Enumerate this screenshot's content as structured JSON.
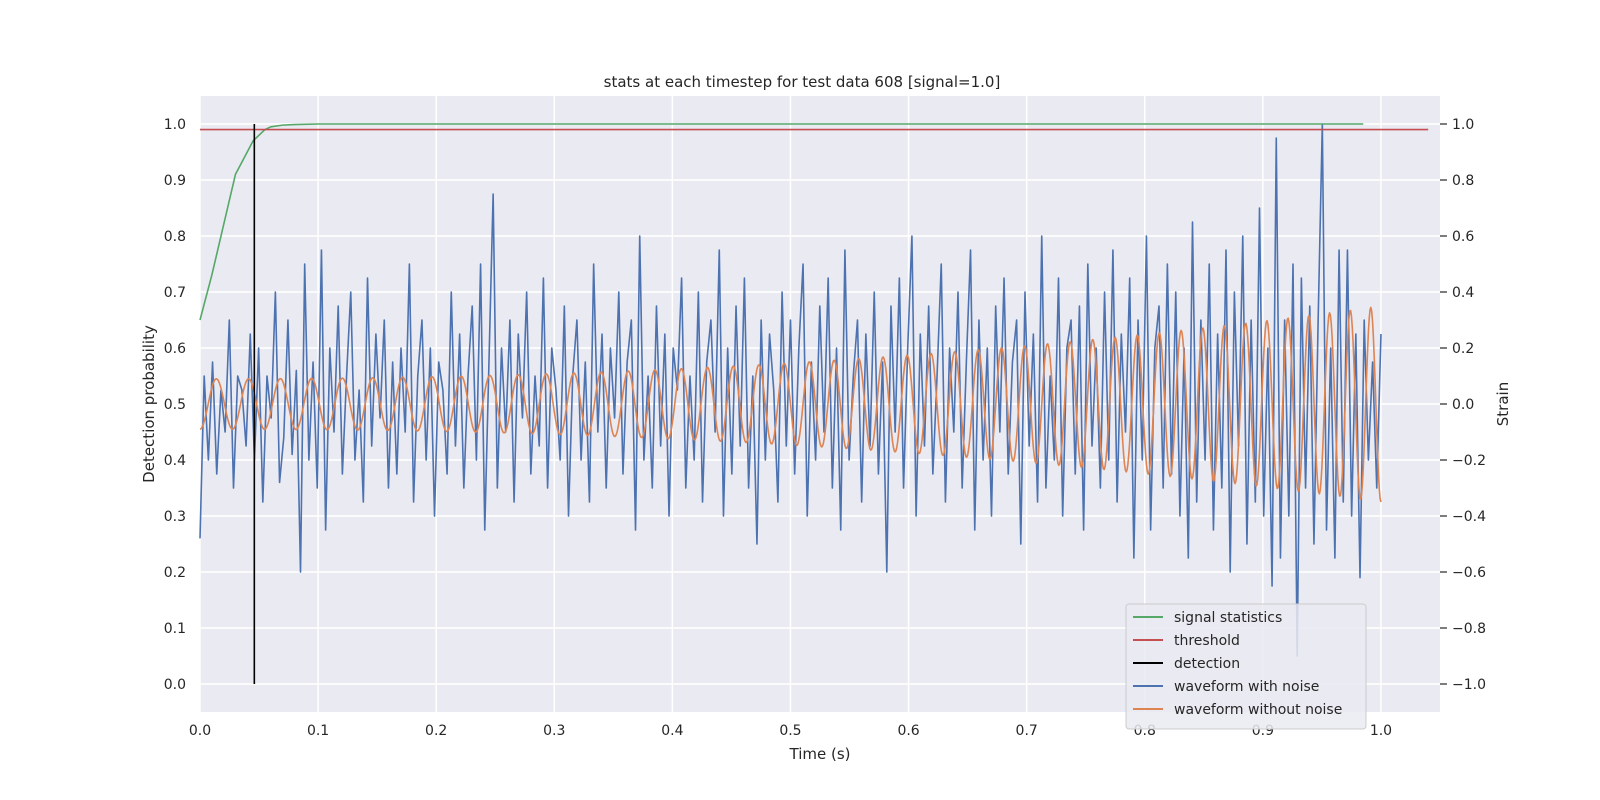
{
  "chart_data": {
    "type": "line",
    "title": "stats at each timestep for test data 608 [signal=1.0]",
    "xlabel": "Time (s)",
    "ylabel": "Detection probability",
    "y2label": "Strain",
    "xlim": [
      0.0,
      1.05
    ],
    "ylim": [
      -0.05,
      1.05
    ],
    "y2lim": [
      -1.1,
      1.1
    ],
    "xticks": [
      "0.0",
      "0.1",
      "0.2",
      "0.3",
      "0.4",
      "0.5",
      "0.6",
      "0.7",
      "0.8",
      "0.9",
      "1.0"
    ],
    "yticks": [
      "0.0",
      "0.1",
      "0.2",
      "0.3",
      "0.4",
      "0.5",
      "0.6",
      "0.7",
      "0.8",
      "0.9",
      "1.0"
    ],
    "y2ticks": [
      "−1.0",
      "−0.8",
      "−0.6",
      "−0.4",
      "−0.2",
      "0.0",
      "0.2",
      "0.4",
      "0.6",
      "0.8",
      "1.0"
    ],
    "grid": true,
    "background": "#eaeaf2",
    "legend_position": "lower-right",
    "series": [
      {
        "name": "signal statistics",
        "axis": "left",
        "color": "#55a868",
        "x": [
          0.0,
          0.01,
          0.02,
          0.03,
          0.04,
          0.045,
          0.05,
          0.055,
          0.06,
          0.07,
          0.08,
          0.1,
          0.2,
          0.5,
          0.8,
          0.985
        ],
        "y": [
          0.65,
          0.73,
          0.82,
          0.91,
          0.95,
          0.97,
          0.98,
          0.99,
          0.995,
          0.998,
          0.999,
          1.0,
          1.0,
          1.0,
          1.0,
          1.0
        ]
      },
      {
        "name": "threshold",
        "axis": "left",
        "color": "#c44e52",
        "x": [
          0.0,
          1.04
        ],
        "y": [
          0.99,
          0.99
        ]
      },
      {
        "name": "detection",
        "axis": "left",
        "color": "#000000",
        "x": [
          0.046,
          0.046
        ],
        "y": [
          0.0,
          1.0
        ]
      },
      {
        "name": "waveform with noise",
        "axis": "right",
        "color": "#4c72b0",
        "x_start": 0.0,
        "x_end": 1.0,
        "values": [
          -0.48,
          0.1,
          -0.2,
          0.15,
          -0.25,
          0.05,
          -0.1,
          0.3,
          -0.3,
          0.1,
          0.05,
          -0.15,
          0.25,
          -0.2,
          0.2,
          -0.35,
          0.1,
          -0.05,
          0.4,
          -0.28,
          -0.12,
          0.3,
          -0.18,
          0.12,
          -0.6,
          0.5,
          -0.2,
          0.15,
          -0.3,
          0.55,
          -0.45,
          0.2,
          -0.1,
          0.35,
          -0.25,
          0.1,
          0.4,
          -0.2,
          0.05,
          -0.35,
          0.45,
          -0.15,
          0.25,
          -0.05,
          0.3,
          -0.3,
          0.15,
          -0.25,
          0.2,
          -0.1,
          0.5,
          -0.35,
          0.1,
          0.3,
          -0.2,
          0.2,
          -0.4,
          0.15,
          0.05,
          -0.25,
          0.4,
          -0.15,
          0.25,
          -0.3,
          0.1,
          0.35,
          -0.2,
          0.5,
          -0.45,
          0.15,
          0.75,
          -0.3,
          0.2,
          -0.1,
          0.3,
          -0.35,
          0.25,
          -0.05,
          0.4,
          -0.25,
          0.1,
          -0.15,
          0.45,
          -0.3,
          0.2,
          0.05,
          -0.2,
          0.35,
          -0.4,
          0.1,
          0.3,
          -0.2,
          0.15,
          -0.35,
          0.5,
          -0.1,
          0.25,
          -0.3,
          0.2,
          -0.05,
          0.4,
          -0.25,
          0.15,
          0.3,
          -0.45,
          0.6,
          -0.2,
          0.1,
          -0.3,
          0.35,
          -0.15,
          0.25,
          -0.4,
          0.2,
          0.05,
          0.45,
          -0.3,
          0.1,
          -0.2,
          0.4,
          -0.35,
          0.15,
          0.3,
          -0.1,
          0.55,
          -0.4,
          0.2,
          -0.25,
          0.35,
          -0.15,
          0.45,
          -0.3,
          0.1,
          -0.5,
          0.3,
          -0.2,
          0.25,
          0.05,
          -0.35,
          0.4,
          -0.15,
          0.3,
          -0.25,
          0.2,
          0.5,
          -0.4,
          0.15,
          -0.2,
          0.35,
          -0.1,
          0.45,
          -0.3,
          0.2,
          -0.45,
          0.55,
          -0.2,
          0.1,
          0.3,
          -0.35,
          0.25,
          -0.15,
          0.4,
          -0.25,
          0.15,
          -0.6,
          0.35,
          -0.1,
          0.45,
          -0.3,
          0.2,
          0.6,
          -0.4,
          0.25,
          -0.15,
          0.35,
          -0.25,
          0.1,
          0.5,
          -0.35,
          0.2,
          -0.1,
          0.4,
          -0.3,
          0.15,
          0.55,
          -0.45,
          0.3,
          -0.2,
          0.2,
          -0.4,
          0.35,
          -0.1,
          0.45,
          -0.25,
          0.15,
          0.3,
          -0.5,
          0.4,
          -0.15,
          0.25,
          -0.35,
          0.6,
          -0.3,
          0.1,
          -0.2,
          0.45,
          -0.4,
          0.2,
          0.3,
          -0.25,
          0.35,
          -0.45,
          0.5,
          -0.15,
          0.2,
          -0.3,
          0.4,
          -0.2,
          0.55,
          -0.35,
          0.25,
          -0.1,
          0.45,
          -0.55,
          0.3,
          -0.2,
          0.6,
          -0.45,
          0.2,
          0.35,
          -0.3,
          0.5,
          -0.25,
          0.4,
          -0.4,
          0.2,
          -0.55,
          0.65,
          -0.35,
          0.3,
          -0.2,
          0.5,
          -0.45,
          0.25,
          -0.3,
          0.55,
          -0.6,
          0.4,
          -0.15,
          0.6,
          -0.5,
          0.3,
          -0.35,
          0.7,
          -0.4,
          0.2,
          -0.65,
          0.95,
          -0.55,
          0.3,
          -0.4,
          0.5,
          -0.9,
          0.45,
          -0.3,
          0.35,
          -0.5,
          0.3,
          1.0,
          -0.45,
          0.2,
          -0.55,
          0.55,
          -0.35,
          0.55,
          -0.4,
          0.25,
          -0.62,
          0.3,
          -0.2,
          0.15,
          -0.3,
          0.25
        ]
      },
      {
        "name": "waveform without noise",
        "axis": "right",
        "color": "#dd8452",
        "x_start": 0.0,
        "x_end": 1.0,
        "amplitude_start": 0.09,
        "amplitude_end": 0.35,
        "frequency_start_hz": 36,
        "frequency_end_hz": 58
      }
    ]
  }
}
